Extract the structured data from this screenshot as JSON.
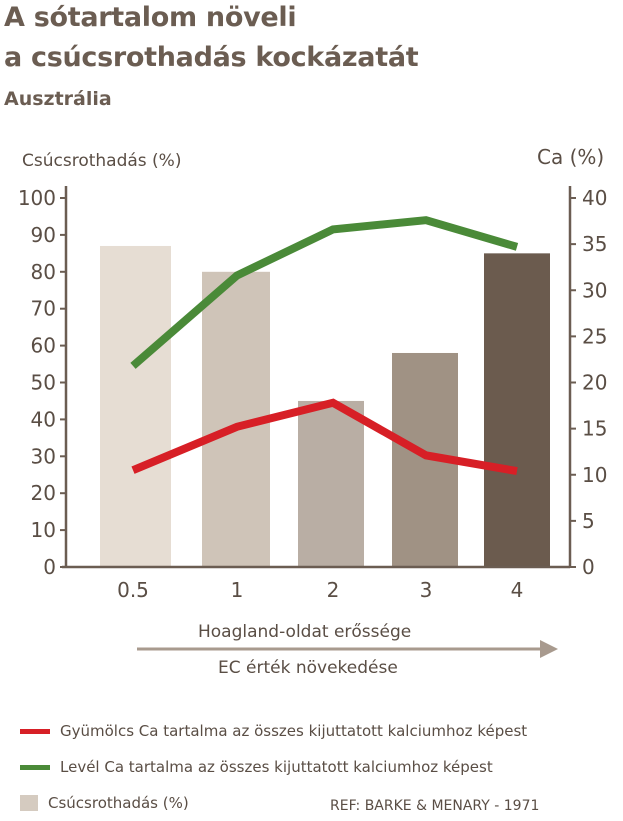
{
  "title_line1": "A sótartalom növeli",
  "title_line2": "a csúcsrothadás kockázatát",
  "subtitle": "Ausztrália",
  "chart_data": {
    "type": "bar+line",
    "categories": [
      "0.5",
      "1",
      "2",
      "3",
      "4"
    ],
    "ylabel_left": "Csúcsrothadás (%)",
    "ylabel_right": "Ca (%)",
    "ylim_left": [
      0,
      100
    ],
    "ylim_right": [
      0,
      40
    ],
    "yticks_left": [
      "0",
      "10",
      "20",
      "30",
      "40",
      "50",
      "60",
      "70",
      "80",
      "90",
      "100"
    ],
    "yticks_right": [
      "0",
      "5",
      "10",
      "15",
      "20",
      "25",
      "30",
      "35",
      "40"
    ],
    "xlabel_line1": "Hoagland-oldat erőssége",
    "xlabel_line2": "EC érték növekedése",
    "bars": {
      "name": "Csúcsrothadás (%)",
      "axis": "left",
      "values": [
        87,
        80,
        45,
        58,
        85
      ],
      "colors": [
        "#e6ddd3",
        "#cfc4b8",
        "#b9aea4",
        "#a09284",
        "#6b5b4e"
      ]
    },
    "series": [
      {
        "name": "Gyümölcs Ca tartalma az összes kijuttatott kalciumhoz képest",
        "axis": "right",
        "color": "#d71f26",
        "values": [
          10.5,
          15.2,
          17.8,
          12.1,
          10.4
        ]
      },
      {
        "name": "Levél Ca tartalma az összes kijuttatott kalciumhoz képest",
        "axis": "right",
        "color": "#4a8a38",
        "values": [
          21.8,
          31.6,
          36.6,
          37.6,
          34.7
        ]
      }
    ]
  },
  "legend": {
    "fruit": "Gyümölcs Ca tartalma az összes kijuttatott kalciumhoz képest",
    "leaf": "Levél Ca tartalma az összes kijuttatott kalciumhoz képest",
    "bars": "Csúcsrothadás (%)"
  },
  "reference": "REF: BARKE & MENARY - 1971"
}
